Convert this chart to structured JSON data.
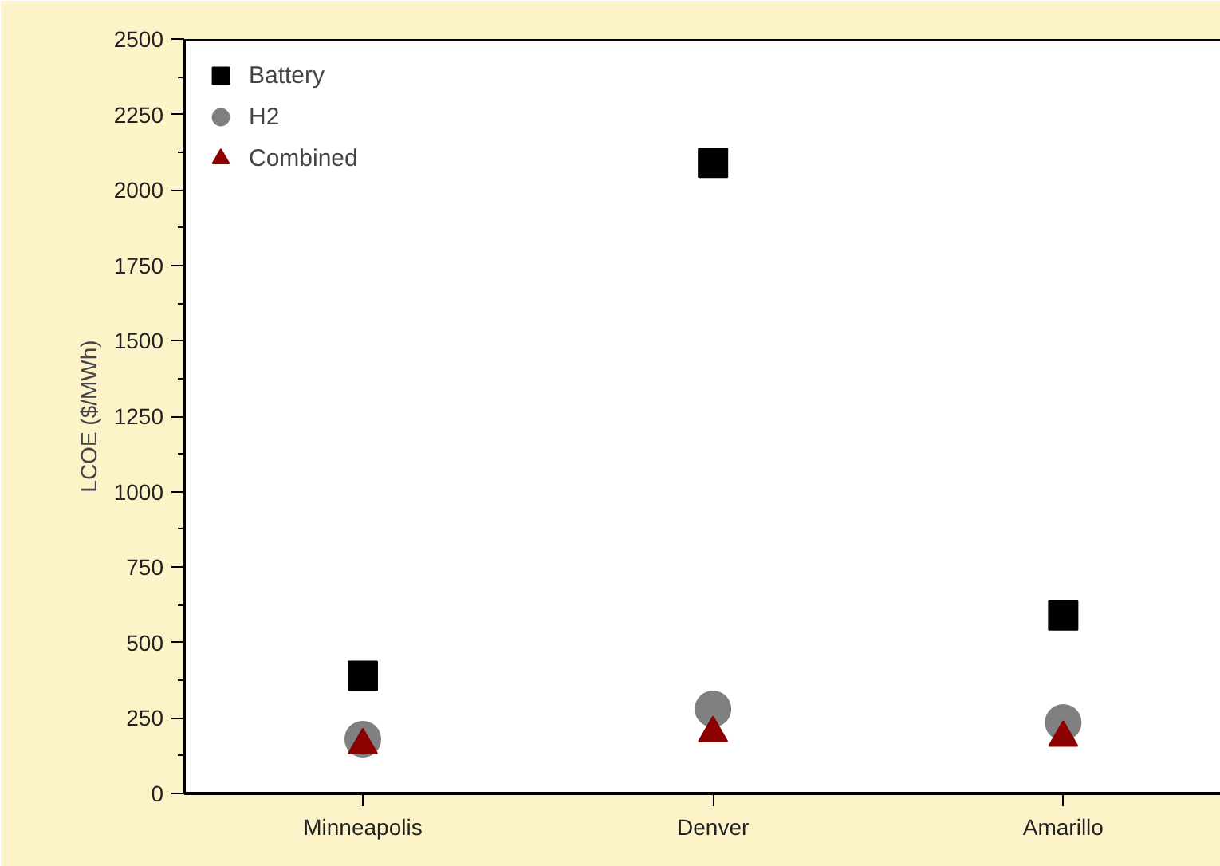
{
  "chart_data": {
    "type": "scatter",
    "ylabel": "LCOE ($/MWh)",
    "categories": [
      "Minneapolis",
      "Denver",
      "Amarillo"
    ],
    "series": [
      {
        "name": "Battery",
        "color": "#000000",
        "marker": "square",
        "values": [
          390,
          2090,
          590
        ]
      },
      {
        "name": "H2",
        "color": "#808080",
        "marker": "circle",
        "values": [
          180,
          280,
          235
        ]
      },
      {
        "name": "Combined",
        "color": "#8b0000",
        "marker": "triangle",
        "values": [
          160,
          200,
          185
        ]
      }
    ],
    "ylim": [
      0,
      2500
    ],
    "yticks": [
      0,
      250,
      500,
      750,
      1000,
      1250,
      1500,
      1750,
      2000,
      2250,
      2500
    ],
    "grid": false,
    "legend": "top left"
  }
}
